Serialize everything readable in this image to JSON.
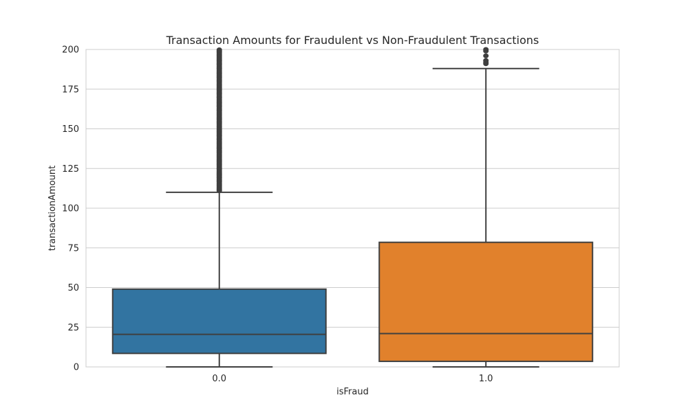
{
  "chart_data": {
    "type": "box",
    "title": "Transaction Amounts for Fraudulent vs Non-Fraudulent Transactions",
    "xlabel": "isFraud",
    "ylabel": "transactionAmount",
    "categories": [
      "0.0",
      "1.0"
    ],
    "ylim": [
      0,
      200
    ],
    "yticks": [
      0,
      25,
      50,
      75,
      100,
      125,
      150,
      175,
      200
    ],
    "grid": true,
    "boxes": [
      {
        "category": "0.0",
        "whisker_low": 0,
        "q1": 8.5,
        "median": 20.5,
        "q3": 49,
        "whisker_high": 110,
        "outliers_from": 111,
        "color": "#3274a1"
      },
      {
        "category": "1.0",
        "whisker_low": 0,
        "q1": 3.5,
        "median": 21,
        "q3": 78.5,
        "whisker_high": 188,
        "outliers": [
          191,
          192,
          193,
          196,
          199,
          200
        ],
        "color": "#e1812c"
      }
    ]
  }
}
